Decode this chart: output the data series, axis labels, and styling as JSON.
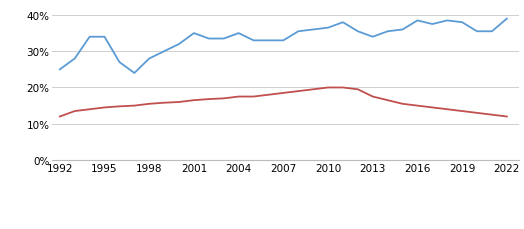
{
  "checotah_years": [
    1992,
    1993,
    1994,
    1995,
    1996,
    1997,
    1998,
    1999,
    2000,
    2001,
    2002,
    2003,
    2004,
    2005,
    2006,
    2007,
    2008,
    2009,
    2010,
    2011,
    2012,
    2013,
    2014,
    2015,
    2016,
    2017,
    2018,
    2019,
    2020,
    2021,
    2022
  ],
  "checotah_values": [
    0.25,
    0.28,
    0.34,
    0.34,
    0.27,
    0.24,
    0.28,
    0.3,
    0.32,
    0.35,
    0.335,
    0.335,
    0.35,
    0.33,
    0.33,
    0.33,
    0.355,
    0.36,
    0.365,
    0.38,
    0.355,
    0.34,
    0.355,
    0.36,
    0.385,
    0.375,
    0.385,
    0.38,
    0.355,
    0.355,
    0.39
  ],
  "ok_years": [
    1992,
    1993,
    1994,
    1995,
    1996,
    1997,
    1998,
    1999,
    2000,
    2001,
    2002,
    2003,
    2004,
    2005,
    2006,
    2007,
    2008,
    2009,
    2010,
    2011,
    2012,
    2013,
    2014,
    2015,
    2016,
    2017,
    2018,
    2019,
    2020,
    2021,
    2022
  ],
  "ok_values": [
    0.12,
    0.135,
    0.14,
    0.145,
    0.148,
    0.15,
    0.155,
    0.158,
    0.16,
    0.165,
    0.168,
    0.17,
    0.175,
    0.175,
    0.18,
    0.185,
    0.19,
    0.195,
    0.2,
    0.2,
    0.195,
    0.175,
    0.165,
    0.155,
    0.15,
    0.145,
    0.14,
    0.135,
    0.13,
    0.125,
    0.12
  ],
  "checotah_color": "#5b9bd5",
  "ok_color": "#c0504d",
  "yticks": [
    0.0,
    0.1,
    0.2,
    0.3,
    0.4
  ],
  "xticks": [
    1992,
    1995,
    1998,
    2001,
    2004,
    2007,
    2010,
    2013,
    2016,
    2019,
    2022
  ],
  "ylim": [
    0,
    0.425
  ],
  "xlim": [
    1991.5,
    2022.8
  ],
  "background_color": "#ffffff",
  "grid_color": "#d0d0d0",
  "tick_fontsize": 7.5,
  "legend_fontsize": 7.5
}
